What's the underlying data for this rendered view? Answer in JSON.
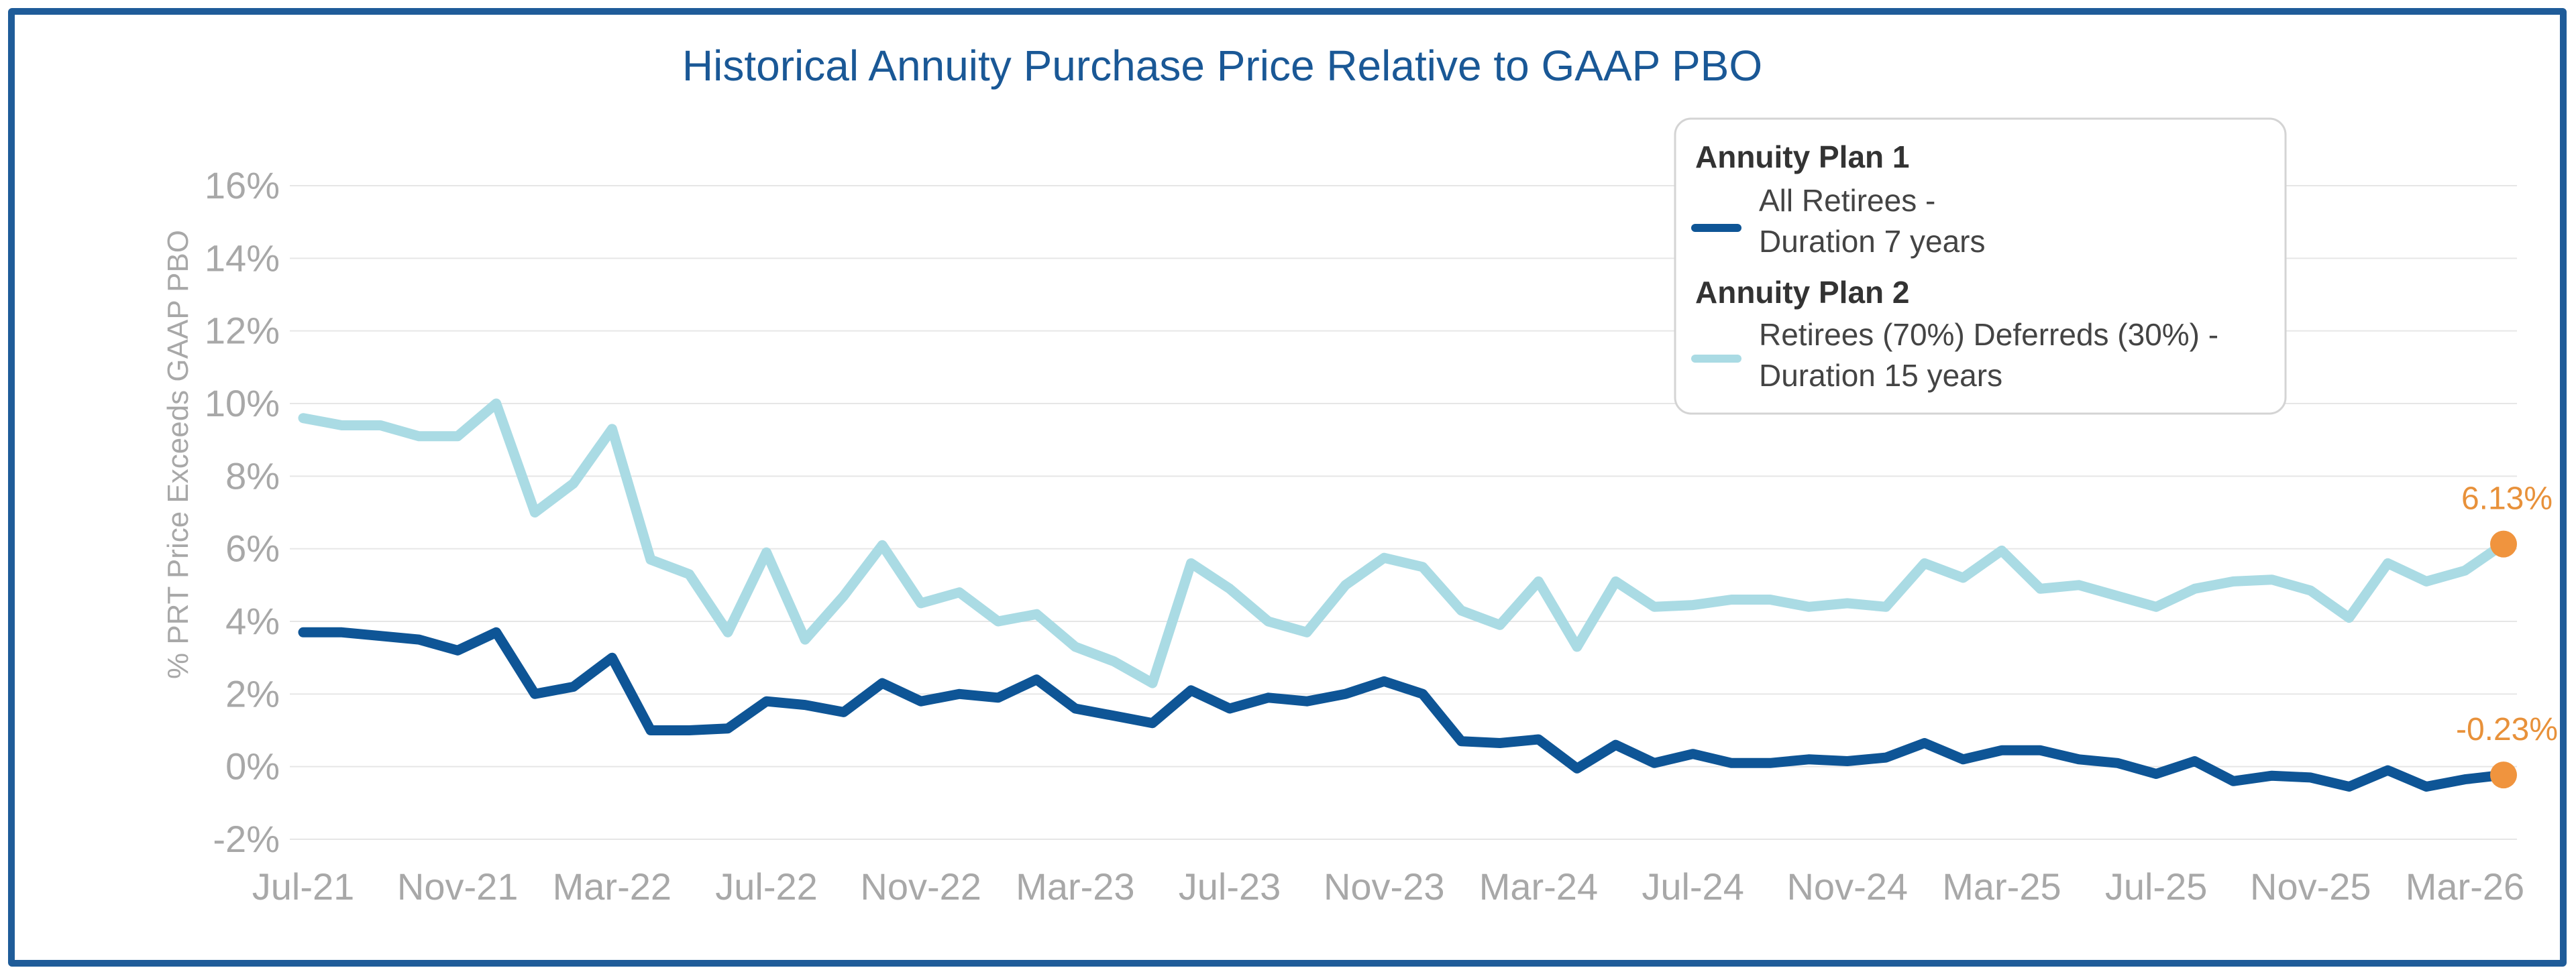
{
  "chart_data": {
    "type": "line",
    "title": "Historical Annuity Purchase Price Relative to GAAP PBO",
    "ylabel": "% PRT Price Exceeds GAAP PBO",
    "xlabel": "",
    "ylim": [
      -2,
      16
    ],
    "yticks": [
      -2,
      0,
      2,
      4,
      6,
      8,
      10,
      12,
      14,
      16
    ],
    "ytick_labels": [
      "-2%",
      "0%",
      "2%",
      "4%",
      "6%",
      "8%",
      "10%",
      "12%",
      "14%",
      "16%"
    ],
    "x": [
      "2021-07",
      "2021-08",
      "2021-09",
      "2021-10",
      "2021-11",
      "2021-12",
      "2022-01",
      "2022-02",
      "2022-03",
      "2022-04",
      "2022-05",
      "2022-06",
      "2022-07",
      "2022-08",
      "2022-09",
      "2022-10",
      "2022-11",
      "2022-12",
      "2023-01",
      "2023-02",
      "2023-03",
      "2023-04",
      "2023-05",
      "2023-06",
      "2023-07",
      "2023-08",
      "2023-09",
      "2023-10",
      "2023-11",
      "2023-12",
      "2024-01",
      "2024-02",
      "2024-03",
      "2024-04",
      "2024-05",
      "2024-06",
      "2024-07",
      "2024-08",
      "2024-09",
      "2024-10",
      "2024-11",
      "2024-12",
      "2025-01",
      "2025-02",
      "2025-03",
      "2025-04",
      "2025-05",
      "2025-06",
      "2025-07",
      "2025-08",
      "2025-09",
      "2025-10",
      "2025-11",
      "2025-12",
      "2026-01",
      "2026-02",
      "2026-03",
      "2026-04"
    ],
    "xtick_labels": [
      "Jul-21",
      "Nov-21",
      "Mar-22",
      "Jul-22",
      "Nov-22",
      "Mar-23",
      "Jul-23",
      "Nov-23",
      "Mar-24",
      "Jul-24",
      "Nov-24",
      "Mar-25",
      "Jul-25",
      "Nov-25",
      "Mar-26"
    ],
    "xtick_index": [
      0,
      4,
      8,
      12,
      16,
      20,
      24,
      28,
      32,
      36,
      40,
      44,
      48,
      52,
      56
    ],
    "grid": true,
    "legend_position": "top-right",
    "legend_groups": [
      {
        "heading": "Annuity Plan 1",
        "series_index": 0,
        "lines": [
          "All Retirees -",
          "Duration 7 years"
        ]
      },
      {
        "heading": "Annuity Plan 2",
        "series_index": 1,
        "lines": [
          "Retirees (70%) Deferreds (30%) -",
          "Duration 15 years"
        ]
      }
    ],
    "series": [
      {
        "color": "#0e5596",
        "end_label": "-0.23%",
        "values": [
          3.7,
          3.7,
          3.6,
          3.5,
          3.2,
          3.7,
          2.0,
          2.2,
          3.0,
          1.0,
          1.0,
          1.05,
          1.8,
          1.7,
          1.5,
          2.3,
          1.8,
          2.0,
          1.9,
          2.4,
          1.6,
          1.4,
          1.2,
          2.1,
          1.6,
          1.9,
          1.8,
          2.0,
          2.35,
          2.0,
          0.7,
          0.65,
          0.75,
          -0.05,
          0.6,
          0.1,
          0.35,
          0.1,
          0.1,
          0.2,
          0.15,
          0.25,
          0.65,
          0.2,
          0.45,
          0.45,
          0.2,
          0.1,
          -0.2,
          0.15,
          -0.4,
          -0.25,
          -0.3,
          -0.55,
          -0.1,
          -0.55,
          -0.35,
          -0.23
        ]
      },
      {
        "color": "#aadbe4",
        "end_label": "6.13%",
        "values": [
          9.6,
          9.4,
          9.4,
          9.1,
          9.1,
          10.0,
          7.0,
          7.8,
          9.3,
          5.7,
          5.3,
          3.7,
          5.9,
          3.5,
          4.7,
          6.1,
          4.5,
          4.8,
          4.0,
          4.2,
          3.3,
          2.9,
          2.3,
          5.6,
          4.9,
          4.0,
          3.7,
          5.0,
          5.75,
          5.5,
          4.3,
          3.9,
          5.1,
          3.3,
          5.1,
          4.4,
          4.45,
          4.6,
          4.6,
          4.4,
          4.5,
          4.4,
          5.6,
          5.2,
          5.95,
          4.9,
          5.0,
          4.7,
          4.4,
          4.9,
          5.1,
          5.15,
          4.85,
          4.1,
          5.6,
          5.1,
          5.4,
          6.13
        ]
      }
    ],
    "end_marker_color": "#f0943e"
  }
}
